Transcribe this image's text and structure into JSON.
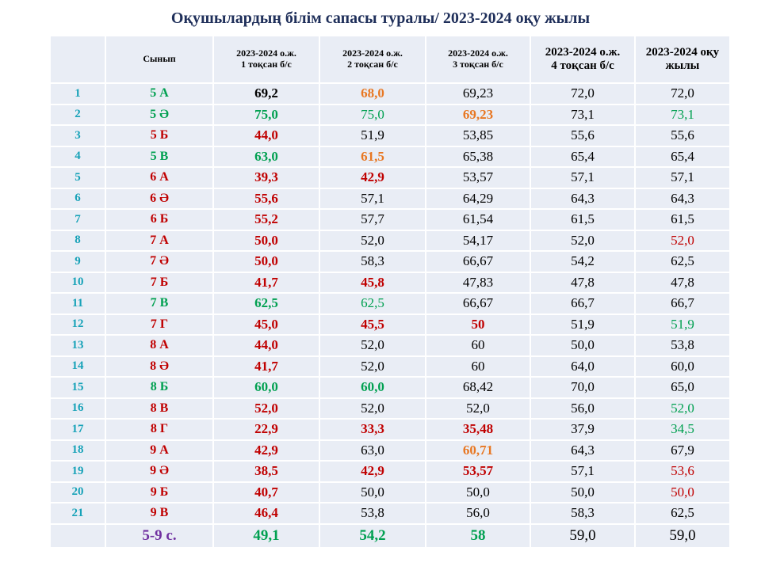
{
  "title": "Оқушылардың білім сапасы туралы/ 2023-2024 оқу жылы",
  "headers": [
    "",
    "Сынып",
    "2023-2024 о.ж.\n1 тоқсан б/с",
    "2023-2024 о.ж.\n2 тоқсан б/с",
    "2023-2024 о.ж.\n3 тоқсан б/с",
    "2023-2024 о.ж.\n4 тоқсан б/с",
    "2023-2024 оқу жылы"
  ],
  "colors": {
    "red": "#c00000",
    "green": "#00a050",
    "orange": "#e87722",
    "number": "#17a2b8",
    "total": "#7030a0"
  },
  "rows": [
    {
      "n": "1",
      "cls": "5 А",
      "clsColor": "green",
      "c": [
        [
          "69,2",
          "",
          "b"
        ],
        [
          "68,0",
          "orange",
          "b"
        ],
        [
          "69,23",
          "",
          ""
        ],
        [
          "72,0",
          "",
          ""
        ],
        [
          "72,0",
          "",
          ""
        ]
      ]
    },
    {
      "n": "2",
      "cls": "5 Ә",
      "clsColor": "green",
      "c": [
        [
          "75,0",
          "green",
          "b"
        ],
        [
          "75,0",
          "green",
          ""
        ],
        [
          "69,23",
          "orange",
          "b"
        ],
        [
          "73,1",
          "",
          ""
        ],
        [
          "73,1",
          "green",
          ""
        ]
      ]
    },
    {
      "n": "3",
      "cls": "5 Б",
      "clsColor": "red",
      "c": [
        [
          "44,0",
          "red",
          "b"
        ],
        [
          "51,9",
          "",
          ""
        ],
        [
          "53,85",
          "",
          ""
        ],
        [
          "55,6",
          "",
          ""
        ],
        [
          "55,6",
          "",
          ""
        ]
      ]
    },
    {
      "n": "4",
      "cls": "5 В",
      "clsColor": "green",
      "c": [
        [
          "63,0",
          "green",
          "b"
        ],
        [
          "61,5",
          "orange",
          "b"
        ],
        [
          "65,38",
          "",
          ""
        ],
        [
          "65,4",
          "",
          ""
        ],
        [
          "65,4",
          "",
          ""
        ]
      ]
    },
    {
      "n": "5",
      "cls": "6 А",
      "clsColor": "red",
      "c": [
        [
          "39,3",
          "red",
          "b"
        ],
        [
          "42,9",
          "red",
          "b"
        ],
        [
          "53,57",
          "",
          ""
        ],
        [
          "57,1",
          "",
          ""
        ],
        [
          "57,1",
          "",
          ""
        ]
      ]
    },
    {
      "n": "6",
      "cls": "6 Ә",
      "clsColor": "red",
      "c": [
        [
          "55,6",
          "red",
          "b"
        ],
        [
          "57,1",
          "",
          ""
        ],
        [
          "64,29",
          "",
          ""
        ],
        [
          "64,3",
          "",
          ""
        ],
        [
          "64,3",
          "",
          ""
        ]
      ]
    },
    {
      "n": "7",
      "cls": "6 Б",
      "clsColor": "red",
      "c": [
        [
          "55,2",
          "red",
          "b"
        ],
        [
          "57,7",
          "",
          ""
        ],
        [
          "61,54",
          "",
          ""
        ],
        [
          "61,5",
          "",
          ""
        ],
        [
          "61,5",
          "",
          ""
        ]
      ]
    },
    {
      "n": "8",
      "cls": "7 А",
      "clsColor": "red",
      "c": [
        [
          "50,0",
          "red",
          "b"
        ],
        [
          "52,0",
          "",
          ""
        ],
        [
          "54,17",
          "",
          ""
        ],
        [
          "52,0",
          "",
          ""
        ],
        [
          "52,0",
          "red",
          ""
        ]
      ]
    },
    {
      "n": "9",
      "cls": "7 Ә",
      "clsColor": "red",
      "c": [
        [
          "50,0",
          "red",
          "b"
        ],
        [
          "58,3",
          "",
          ""
        ],
        [
          "66,67",
          "",
          ""
        ],
        [
          "54,2",
          "",
          ""
        ],
        [
          "62,5",
          "",
          ""
        ]
      ]
    },
    {
      "n": "10",
      "cls": "7 Б",
      "clsColor": "red",
      "c": [
        [
          "41,7",
          "red",
          "b"
        ],
        [
          "45,8",
          "red",
          "b"
        ],
        [
          "47,83",
          "",
          ""
        ],
        [
          "47,8",
          "",
          ""
        ],
        [
          "47,8",
          "",
          ""
        ]
      ]
    },
    {
      "n": "11",
      "cls": "7 В",
      "clsColor": "green",
      "c": [
        [
          "62,5",
          "green",
          "b"
        ],
        [
          "62,5",
          "green",
          ""
        ],
        [
          "66,67",
          "",
          ""
        ],
        [
          "66,7",
          "",
          ""
        ],
        [
          "66,7",
          "",
          ""
        ]
      ]
    },
    {
      "n": "12",
      "cls": "7 Г",
      "clsColor": "red",
      "c": [
        [
          "45,0",
          "red",
          "b"
        ],
        [
          "45,5",
          "red",
          "b"
        ],
        [
          "50",
          "red",
          "b"
        ],
        [
          "51,9",
          "",
          ""
        ],
        [
          "51,9",
          "green",
          ""
        ]
      ]
    },
    {
      "n": "13",
      "cls": "8 А",
      "clsColor": "red",
      "c": [
        [
          "44,0",
          "red",
          "b"
        ],
        [
          "52,0",
          "",
          ""
        ],
        [
          "60",
          "",
          ""
        ],
        [
          "50,0",
          "",
          ""
        ],
        [
          "53,8",
          "",
          ""
        ]
      ]
    },
    {
      "n": "14",
      "cls": "8 Ә",
      "clsColor": "red",
      "c": [
        [
          "41,7",
          "red",
          "b"
        ],
        [
          "52,0",
          "",
          ""
        ],
        [
          "60",
          "",
          ""
        ],
        [
          "64,0",
          "",
          ""
        ],
        [
          "60,0",
          "",
          ""
        ]
      ]
    },
    {
      "n": "15",
      "cls": "8 Б",
      "clsColor": "green",
      "c": [
        [
          "60,0",
          "green",
          "b"
        ],
        [
          "60,0",
          "green",
          "b"
        ],
        [
          "68,42",
          "",
          ""
        ],
        [
          "70,0",
          "",
          ""
        ],
        [
          "65,0",
          "",
          ""
        ]
      ]
    },
    {
      "n": "16",
      "cls": "8 В",
      "clsColor": "red",
      "c": [
        [
          "52,0",
          "red",
          "b"
        ],
        [
          "52,0",
          "",
          ""
        ],
        [
          "52,0",
          "",
          ""
        ],
        [
          "56,0",
          "",
          ""
        ],
        [
          "52,0",
          "green",
          ""
        ]
      ]
    },
    {
      "n": "17",
      "cls": "8 Г",
      "clsColor": "red",
      "c": [
        [
          "22,9",
          "red",
          "b"
        ],
        [
          "33,3",
          "red",
          "b"
        ],
        [
          "35,48",
          "red",
          "b"
        ],
        [
          "37,9",
          "",
          ""
        ],
        [
          "34,5",
          "green",
          ""
        ]
      ]
    },
    {
      "n": "18",
      "cls": "9 А",
      "clsColor": "red",
      "c": [
        [
          "42,9",
          "red",
          "b"
        ],
        [
          "63,0",
          "",
          ""
        ],
        [
          "60,71",
          "orange",
          "b"
        ],
        [
          "64,3",
          "",
          ""
        ],
        [
          "67,9",
          "",
          ""
        ]
      ]
    },
    {
      "n": "19",
      "cls": "9 Ә",
      "clsColor": "red",
      "c": [
        [
          "38,5",
          "red",
          "b"
        ],
        [
          "42,9",
          "red",
          "b"
        ],
        [
          "53,57",
          "red",
          "b"
        ],
        [
          "57,1",
          "",
          ""
        ],
        [
          "53,6",
          "red",
          ""
        ]
      ]
    },
    {
      "n": "20",
      "cls": "9 Б",
      "clsColor": "red",
      "c": [
        [
          "40,7",
          "red",
          "b"
        ],
        [
          "50,0",
          "",
          ""
        ],
        [
          "50,0",
          "",
          ""
        ],
        [
          "50,0",
          "",
          ""
        ],
        [
          "50,0",
          "red",
          ""
        ]
      ]
    },
    {
      "n": "21",
      "cls": "9 В",
      "clsColor": "red",
      "c": [
        [
          "46,4",
          "red",
          "b"
        ],
        [
          "53,8",
          "",
          ""
        ],
        [
          "56,0",
          "",
          ""
        ],
        [
          "58,3",
          "",
          ""
        ],
        [
          "62,5",
          "",
          ""
        ]
      ]
    }
  ],
  "total": {
    "label": "5-9 с.",
    "c": [
      [
        "49,1",
        "green",
        "b"
      ],
      [
        "54,2",
        "green",
        "b"
      ],
      [
        "58",
        "green",
        "b"
      ],
      [
        "59,0",
        "",
        ""
      ],
      [
        "59,0",
        "",
        ""
      ]
    ]
  }
}
